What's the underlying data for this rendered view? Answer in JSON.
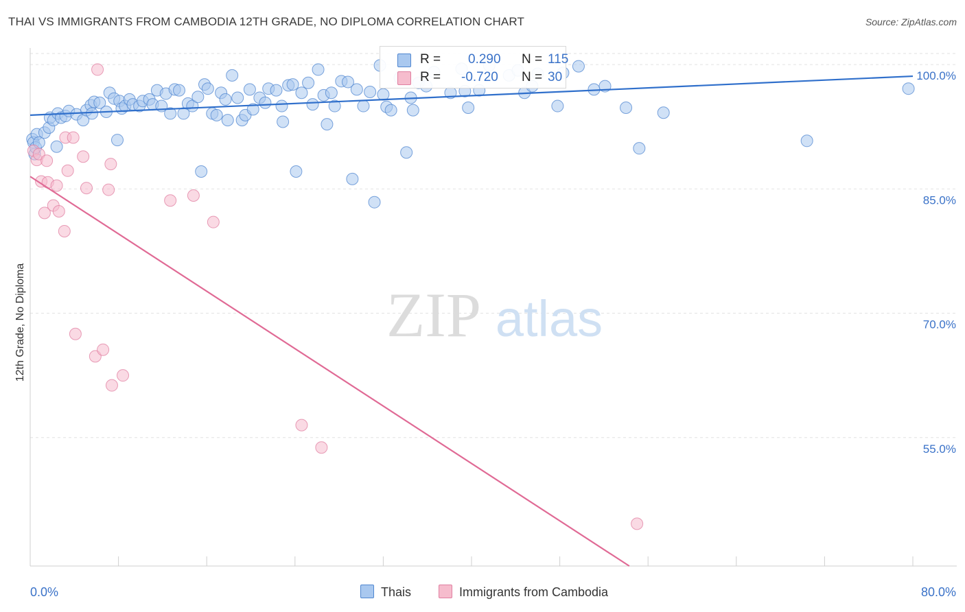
{
  "header": {
    "title": "THAI VS IMMIGRANTS FROM CAMBODIA 12TH GRADE, NO DIPLOMA CORRELATION CHART",
    "source": "Source: ZipAtlas.com"
  },
  "watermark": {
    "zip": "ZIP",
    "atlas": "atlas"
  },
  "legend_top": [
    {
      "r_label": "R =",
      "r_value": "0.290",
      "n_label": "N =",
      "n_value": "115"
    },
    {
      "r_label": "R =",
      "r_value": "-0.720",
      "n_label": "N =",
      "n_value": "30"
    }
  ],
  "colors": {
    "thai_fill": "#a9c8ef",
    "thai_stroke": "#4f86d0",
    "thai_line": "#2f6fcb",
    "camb_fill": "#f6bccd",
    "camb_stroke": "#e07ea0",
    "camb_line": "#e06a95",
    "tick_text": "#3a72c8",
    "grid": "#e2e2e2"
  },
  "chart_data": {
    "type": "scatter",
    "title": "THAI VS IMMIGRANTS FROM CAMBODIA 12TH GRADE, NO DIPLOMA CORRELATION CHART",
    "xlabel": "",
    "ylabel": "12th Grade, No Diploma",
    "xlim": [
      0,
      80
    ],
    "ylim": [
      39.5,
      102
    ],
    "x_tick_labels": [
      "0.0%",
      "80.0%"
    ],
    "y_ticks": [
      55,
      70,
      85,
      100
    ],
    "y_tick_labels": [
      "55.0%",
      "70.0%",
      "85.0%",
      "100.0%"
    ],
    "grid": true,
    "legend_position": "bottom",
    "series": [
      {
        "name": "Thais",
        "r": 0.29,
        "n": 115,
        "trend": {
          "x": [
            0,
            80
          ],
          "y": [
            93.9,
            98.6
          ]
        },
        "points": [
          [
            0.2,
            91.0
          ],
          [
            0.3,
            90.6
          ],
          [
            0.4,
            89.2
          ],
          [
            0.5,
            90.0
          ],
          [
            0.6,
            91.6
          ],
          [
            0.8,
            90.6
          ],
          [
            1.3,
            91.8
          ],
          [
            1.7,
            92.4
          ],
          [
            1.8,
            93.6
          ],
          [
            2.1,
            93.3
          ],
          [
            2.4,
            90.1
          ],
          [
            2.5,
            94.1
          ],
          [
            2.8,
            93.6
          ],
          [
            3.2,
            93.8
          ],
          [
            3.5,
            94.4
          ],
          [
            4.2,
            94.0
          ],
          [
            4.8,
            93.3
          ],
          [
            5.1,
            94.5
          ],
          [
            5.5,
            95.1
          ],
          [
            5.6,
            94.1
          ],
          [
            5.8,
            95.5
          ],
          [
            6.3,
            95.4
          ],
          [
            6.9,
            94.3
          ],
          [
            7.2,
            96.6
          ],
          [
            7.6,
            95.9
          ],
          [
            7.9,
            90.9
          ],
          [
            8.1,
            95.6
          ],
          [
            8.3,
            94.7
          ],
          [
            8.6,
            95.0
          ],
          [
            9.0,
            95.8
          ],
          [
            9.3,
            95.2
          ],
          [
            9.9,
            95.0
          ],
          [
            10.2,
            95.6
          ],
          [
            10.8,
            95.8
          ],
          [
            11.1,
            95.2
          ],
          [
            11.5,
            96.9
          ],
          [
            11.9,
            95.0
          ],
          [
            12.3,
            96.5
          ],
          [
            12.7,
            94.1
          ],
          [
            13.1,
            97.0
          ],
          [
            13.5,
            96.9
          ],
          [
            13.9,
            94.1
          ],
          [
            14.3,
            95.3
          ],
          [
            14.7,
            95.0
          ],
          [
            15.2,
            96.1
          ],
          [
            15.5,
            87.1
          ],
          [
            15.8,
            97.6
          ],
          [
            16.1,
            97.1
          ],
          [
            16.5,
            94.1
          ],
          [
            16.9,
            93.9
          ],
          [
            17.3,
            96.6
          ],
          [
            17.7,
            95.8
          ],
          [
            17.9,
            93.3
          ],
          [
            18.3,
            98.7
          ],
          [
            18.8,
            96.0
          ],
          [
            19.2,
            93.3
          ],
          [
            19.5,
            93.9
          ],
          [
            19.9,
            97.0
          ],
          [
            20.2,
            94.6
          ],
          [
            20.8,
            96.0
          ],
          [
            21.3,
            95.4
          ],
          [
            21.6,
            97.1
          ],
          [
            22.3,
            96.9
          ],
          [
            22.8,
            95.0
          ],
          [
            22.9,
            93.1
          ],
          [
            23.4,
            97.5
          ],
          [
            23.8,
            97.6
          ],
          [
            24.1,
            87.1
          ],
          [
            24.6,
            96.6
          ],
          [
            25.2,
            97.8
          ],
          [
            25.6,
            95.2
          ],
          [
            26.1,
            99.4
          ],
          [
            26.6,
            96.3
          ],
          [
            26.9,
            92.8
          ],
          [
            27.3,
            96.6
          ],
          [
            27.6,
            95.0
          ],
          [
            28.2,
            98.0
          ],
          [
            28.8,
            97.9
          ],
          [
            29.2,
            86.2
          ],
          [
            29.6,
            97.0
          ],
          [
            30.2,
            95.0
          ],
          [
            30.8,
            96.7
          ],
          [
            31.2,
            83.4
          ],
          [
            31.7,
            99.9
          ],
          [
            32.0,
            96.4
          ],
          [
            32.3,
            94.9
          ],
          [
            32.7,
            94.5
          ],
          [
            33.5,
            98.4
          ],
          [
            34.1,
            89.4
          ],
          [
            34.5,
            96.0
          ],
          [
            34.7,
            94.5
          ],
          [
            35.2,
            97.8
          ],
          [
            35.9,
            97.4
          ],
          [
            36.6,
            99.1
          ],
          [
            38.1,
            96.6
          ],
          [
            39.1,
            99.5
          ],
          [
            39.4,
            96.8
          ],
          [
            39.7,
            94.8
          ],
          [
            40.7,
            96.9
          ],
          [
            41.6,
            99.9
          ],
          [
            43.4,
            98.7
          ],
          [
            44.2,
            99.3
          ],
          [
            44.8,
            96.6
          ],
          [
            45.5,
            97.4
          ],
          [
            46.0,
            98.9
          ],
          [
            47.8,
            95.0
          ],
          [
            48.3,
            99.0
          ],
          [
            49.7,
            99.8
          ],
          [
            51.1,
            97.0
          ],
          [
            52.1,
            97.4
          ],
          [
            54.0,
            94.8
          ],
          [
            57.4,
            94.2
          ],
          [
            55.2,
            89.9
          ],
          [
            70.4,
            90.8
          ],
          [
            79.6,
            97.1
          ]
        ]
      },
      {
        "name": "Immigrants from Cambodia",
        "r": -0.72,
        "n": 30,
        "trend": {
          "x": [
            0,
            54.3
          ],
          "y": [
            86.5,
            39.5
          ]
        },
        "points": [
          [
            0.3,
            89.6
          ],
          [
            0.6,
            88.5
          ],
          [
            0.8,
            89.2
          ],
          [
            1.0,
            85.9
          ],
          [
            1.3,
            82.1
          ],
          [
            1.5,
            88.4
          ],
          [
            1.6,
            85.8
          ],
          [
            2.1,
            83.0
          ],
          [
            2.4,
            85.4
          ],
          [
            2.6,
            82.3
          ],
          [
            3.1,
            79.9
          ],
          [
            3.2,
            91.2
          ],
          [
            3.4,
            87.2
          ],
          [
            3.9,
            91.2
          ],
          [
            4.1,
            67.5
          ],
          [
            4.8,
            88.9
          ],
          [
            5.1,
            85.1
          ],
          [
            5.9,
            64.8
          ],
          [
            6.1,
            99.4
          ],
          [
            6.6,
            65.6
          ],
          [
            7.1,
            84.9
          ],
          [
            7.3,
            88.0
          ],
          [
            7.4,
            61.3
          ],
          [
            8.4,
            62.5
          ],
          [
            12.7,
            83.6
          ],
          [
            14.8,
            84.2
          ],
          [
            16.6,
            81.0
          ],
          [
            24.6,
            56.5
          ],
          [
            26.4,
            53.8
          ],
          [
            55.0,
            44.6
          ]
        ]
      }
    ]
  },
  "bottom_legend": [
    {
      "label": "Thais"
    },
    {
      "label": "Immigrants from Cambodia"
    }
  ]
}
